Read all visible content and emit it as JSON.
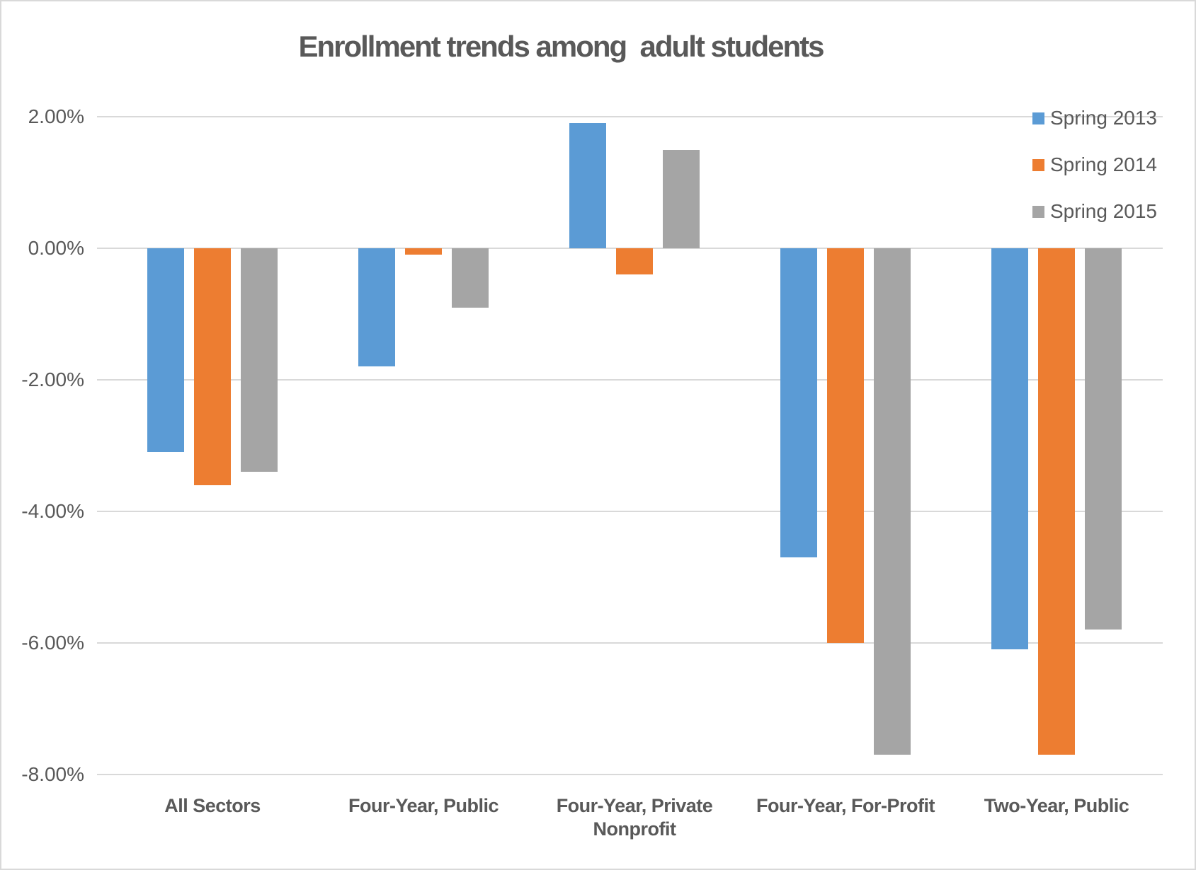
{
  "chart_data": {
    "type": "bar",
    "title": "Enrollment trends among  adult students",
    "categories": [
      "All Sectors",
      "Four-Year, Public",
      "Four-Year, Private Nonprofit",
      "Four-Year, For-Profit",
      "Two-Year, Public"
    ],
    "series": [
      {
        "name": "Spring 2013",
        "color": "#5B9BD5",
        "values": [
          -3.1,
          -1.8,
          1.9,
          -4.7,
          -6.1
        ]
      },
      {
        "name": "Spring 2014",
        "color": "#ED7D31",
        "values": [
          -3.6,
          -0.1,
          -0.4,
          -6.0,
          -7.7
        ]
      },
      {
        "name": "Spring 2015",
        "color": "#A5A5A5",
        "values": [
          -3.4,
          -0.9,
          1.5,
          -7.7,
          -5.8
        ]
      }
    ],
    "ylim": [
      -8,
      2
    ],
    "yticks": [
      {
        "value": 2,
        "label": "2.00%"
      },
      {
        "value": 0,
        "label": "0.00%"
      },
      {
        "value": -2,
        "label": "-2.00%"
      },
      {
        "value": -4,
        "label": "-4.00%"
      },
      {
        "value": -6,
        "label": "-6.00%"
      },
      {
        "value": -8,
        "label": "-8.00%"
      }
    ],
    "value_unit": "percent",
    "grid": true,
    "legend_position": "top-right"
  },
  "colors": {
    "gridline": "#D9D9D9",
    "border": "#D9D9D9",
    "text": "#595959",
    "background": "#FFFFFF"
  }
}
